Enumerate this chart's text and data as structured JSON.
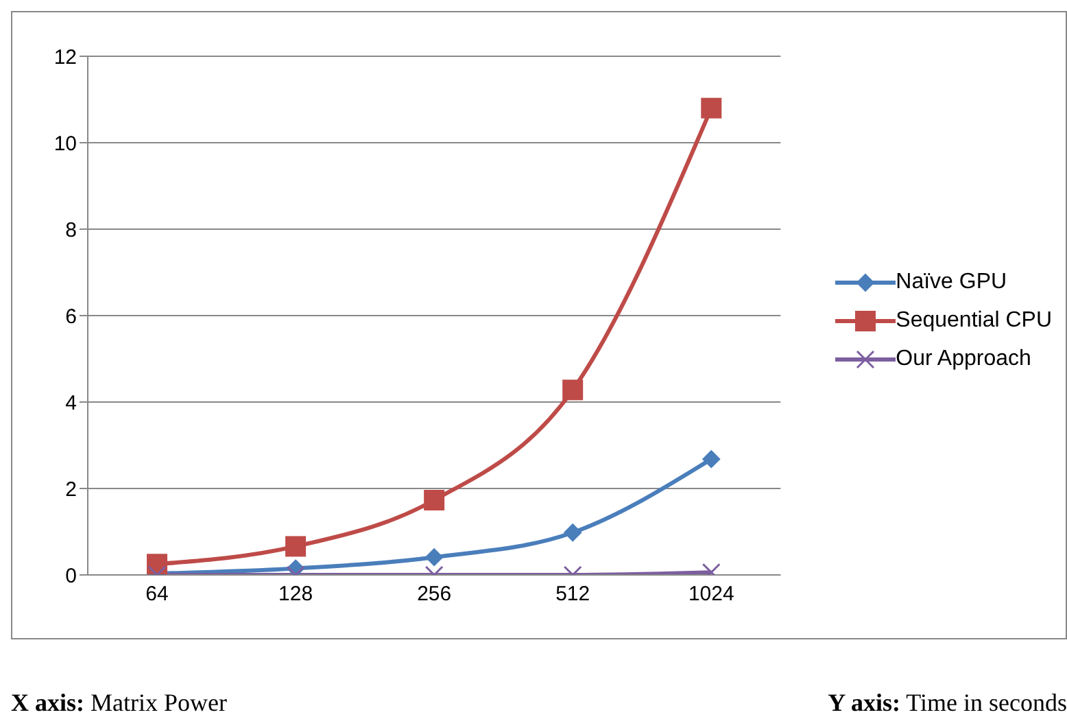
{
  "chart_data": {
    "type": "line",
    "categories": [
      "64",
      "128",
      "256",
      "512",
      "1024"
    ],
    "series": [
      {
        "name": "Naïve GPU",
        "color": "#4a7ebb",
        "marker": "diamond",
        "values": [
          0.03,
          0.15,
          0.41,
          0.98,
          2.68
        ]
      },
      {
        "name": "Sequential CPU",
        "color": "#be4b48",
        "marker": "square",
        "values": [
          0.25,
          0.66,
          1.73,
          4.28,
          10.8
        ]
      },
      {
        "name": "Our Approach",
        "color": "#7d5fa0",
        "marker": "cross",
        "values": [
          0.0,
          0.0,
          0.0,
          0.0,
          0.06
        ]
      }
    ],
    "ylim": [
      0,
      12
    ],
    "yticks": [
      0,
      2,
      4,
      6,
      8,
      10,
      12
    ],
    "grid": "y",
    "legend": "right",
    "line_style": "solid",
    "annotations": [
      "X axis: Matrix Power",
      "Y axis: Time in seconds"
    ]
  }
}
